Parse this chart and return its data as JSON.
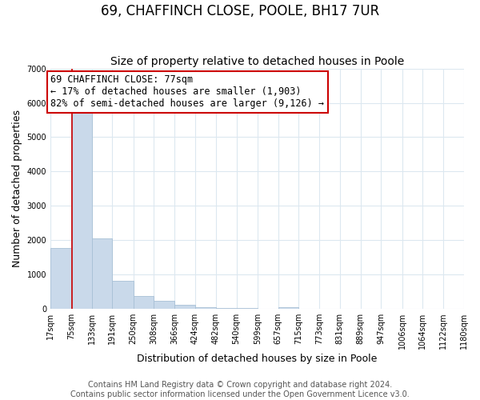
{
  "title": "69, CHAFFINCH CLOSE, POOLE, BH17 7UR",
  "subtitle": "Size of property relative to detached houses in Poole",
  "xlabel": "Distribution of detached houses by size in Poole",
  "ylabel": "Number of detached properties",
  "bar_edges": [
    17,
    75,
    133,
    191,
    250,
    308,
    366,
    424,
    482,
    540,
    599,
    657,
    715,
    773,
    831,
    889,
    947,
    1006,
    1064,
    1122,
    1180
  ],
  "bar_heights": [
    1780,
    5760,
    2050,
    820,
    370,
    230,
    110,
    60,
    30,
    15,
    8,
    40,
    0,
    0,
    0,
    0,
    0,
    0,
    0,
    0
  ],
  "bar_color": "#c9d9ea",
  "bar_edge_color": "#a8c0d6",
  "vline_x": 77,
  "vline_color": "#cc0000",
  "annotation_title": "69 CHAFFINCH CLOSE: 77sqm",
  "annotation_line1": "← 17% of detached houses are smaller (1,903)",
  "annotation_line2": "82% of semi-detached houses are larger (9,126) →",
  "annotation_box_color": "#ffffff",
  "annotation_box_edge": "#cc0000",
  "ylim": [
    0,
    7000
  ],
  "yticks": [
    0,
    1000,
    2000,
    3000,
    4000,
    5000,
    6000,
    7000
  ],
  "xtick_labels": [
    "17sqm",
    "75sqm",
    "133sqm",
    "191sqm",
    "250sqm",
    "308sqm",
    "366sqm",
    "424sqm",
    "482sqm",
    "540sqm",
    "599sqm",
    "657sqm",
    "715sqm",
    "773sqm",
    "831sqm",
    "889sqm",
    "947sqm",
    "1006sqm",
    "1064sqm",
    "1122sqm",
    "1180sqm"
  ],
  "footer_line1": "Contains HM Land Registry data © Crown copyright and database right 2024.",
  "footer_line2": "Contains public sector information licensed under the Open Government Licence v3.0.",
  "grid_color": "#dce8f0",
  "background_color": "#ffffff",
  "title_fontsize": 12,
  "subtitle_fontsize": 10,
  "axis_label_fontsize": 9,
  "tick_fontsize": 7,
  "annotation_fontsize": 8.5,
  "footer_fontsize": 7
}
